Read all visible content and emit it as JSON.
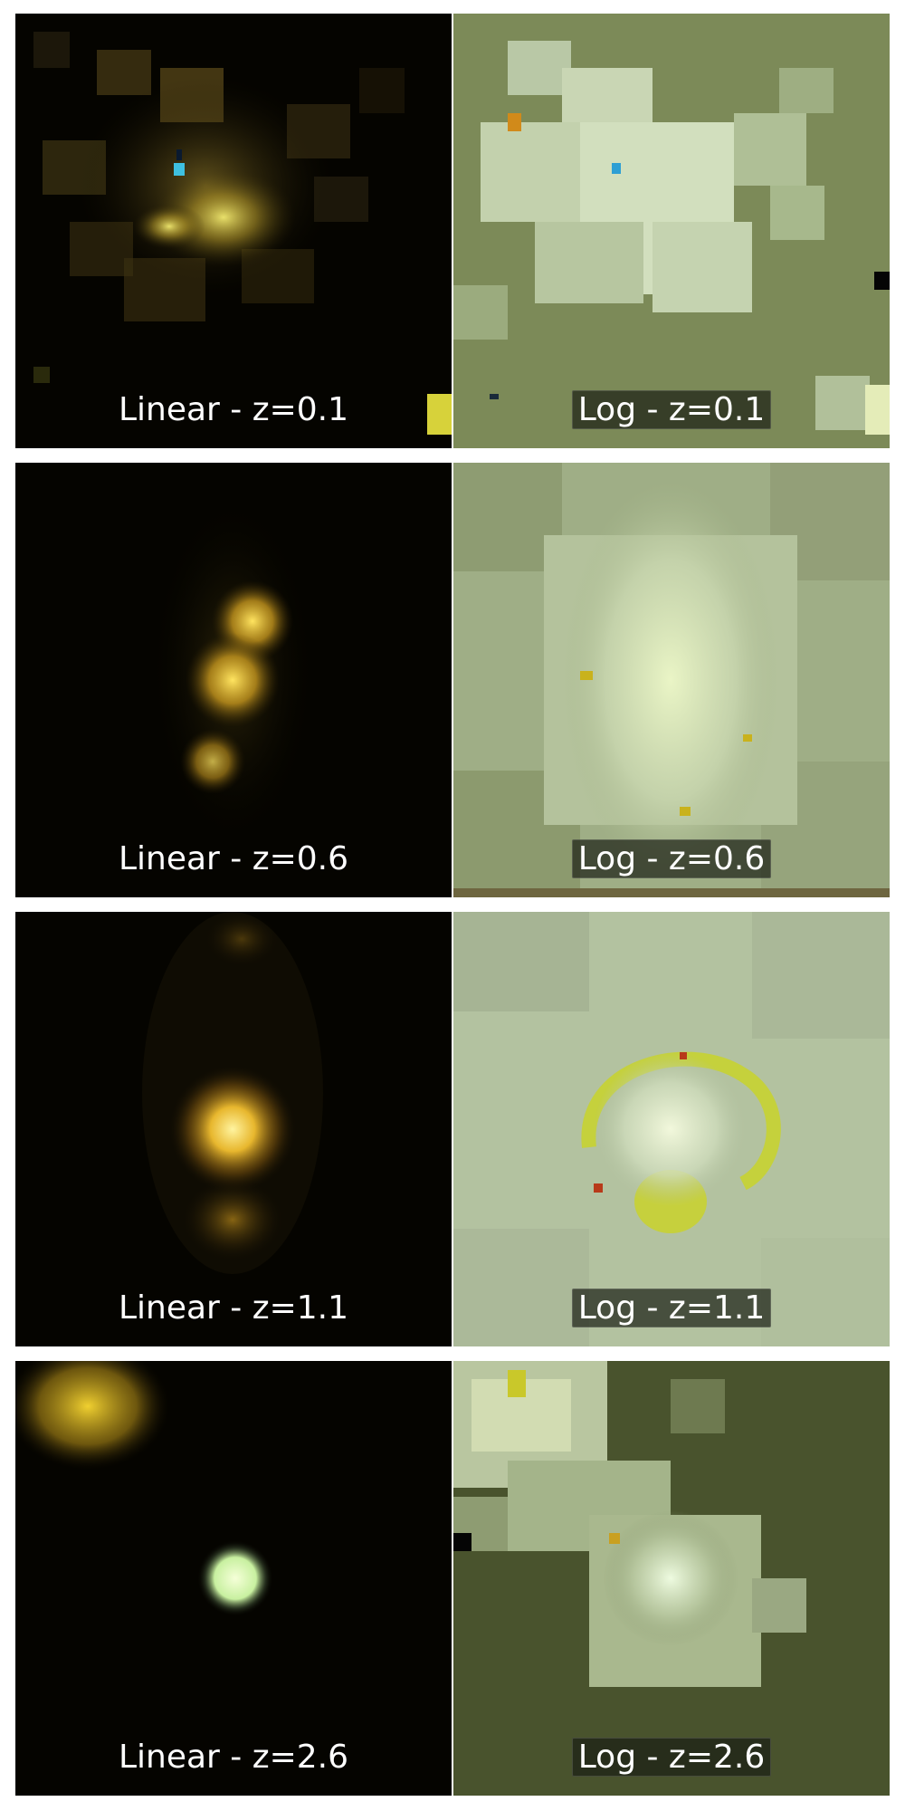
{
  "rows": [
    {
      "linear_label": "Linear - z=0.1",
      "log_label": "Log - z=0.1"
    },
    {
      "linear_label": "Linear - z=0.6",
      "log_label": "Log - z=0.6"
    },
    {
      "linear_label": "Linear - z=1.1",
      "log_label": "Log - z=1.1"
    },
    {
      "linear_label": "Linear - z=2.6",
      "log_label": "Log - z=2.6"
    }
  ],
  "colors": {
    "linear_background": "#050400",
    "log_background_row1": "#7c8a58",
    "log_background_row2": "#9fae86",
    "log_background_row3": "#b3c2a0",
    "log_background_row4": "#49532d",
    "galaxy_core": "#f5e060",
    "galaxy_halo": "#c9a526",
    "point_source": "#e8ffd0"
  }
}
